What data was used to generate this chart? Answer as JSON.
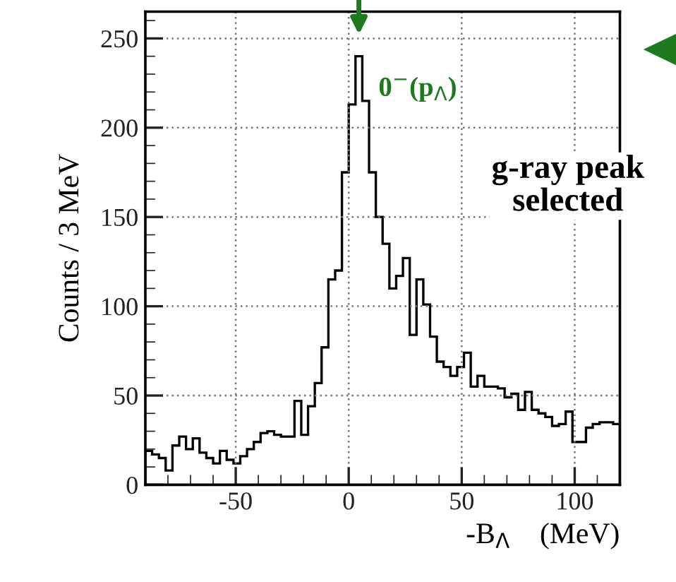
{
  "chart_data": {
    "type": "histogram",
    "xlabel": "-B$_{Λ}$    (MeV)",
    "ylabel": "Counts / 3 MeV",
    "bins": [
      -90,
      -87,
      -84,
      -81,
      -78,
      -75,
      -72,
      -69,
      -66,
      -63,
      -60,
      -57,
      -54,
      -51,
      -48,
      -45,
      -42,
      -39,
      -36,
      -33,
      -30,
      -27,
      -24,
      -21,
      -18,
      -15,
      -12,
      -9,
      -6,
      -3,
      0,
      3,
      6,
      9,
      12,
      15,
      18,
      21,
      24,
      27,
      30,
      33,
      36,
      39,
      42,
      45,
      48,
      51,
      54,
      57,
      60,
      63,
      66,
      69,
      72,
      75,
      78,
      81,
      84,
      87,
      90,
      93,
      96,
      99,
      102,
      105,
      108,
      111,
      114,
      117,
      120
    ],
    "values": [
      19,
      17,
      15,
      8,
      22,
      27,
      20,
      26,
      18,
      15,
      12,
      19,
      14,
      12,
      16,
      20,
      24,
      29,
      30,
      28,
      27,
      27,
      47,
      28,
      44,
      57,
      77,
      115,
      120,
      175,
      213,
      240,
      215,
      175,
      150,
      135,
      110,
      117,
      127,
      84,
      115,
      101,
      83,
      69,
      66,
      61,
      66,
      74,
      55,
      61,
      55,
      55,
      54,
      49,
      51,
      42,
      52,
      42,
      40,
      38,
      33,
      34,
      41,
      24,
      24,
      32,
      34,
      35,
      35,
      34
    ],
    "color": "#000000",
    "xlim": [
      -90,
      120
    ],
    "xticks": [
      -50,
      0,
      50,
      100
    ],
    "ylim": [
      0,
      265
    ],
    "yticks": [
      0,
      50,
      100,
      150,
      200,
      250
    ],
    "grid": true,
    "annotations": [
      "0$^{−}$(p$_{Λ}$)",
      "g-ray peak\nselected"
    ]
  }
}
